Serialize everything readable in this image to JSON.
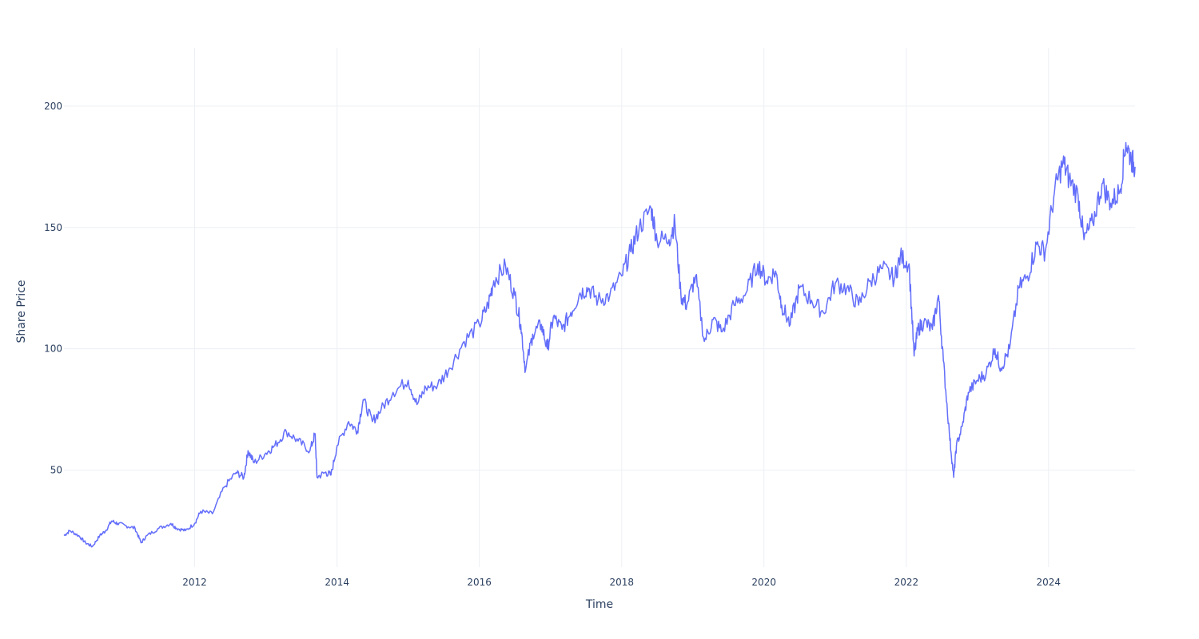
{
  "chart_data": {
    "type": "line",
    "title": "",
    "xlabel": "Time",
    "ylabel": "Share Price",
    "xlim": [
      "2010-03-01",
      "2025-03-20"
    ],
    "ylim": [
      10,
      224
    ],
    "grid": true,
    "legend": "none",
    "x_ticks": [
      "2012",
      "2014",
      "2016",
      "2018",
      "2020",
      "2022",
      "2024"
    ],
    "y_ticks": [
      50,
      100,
      150,
      200
    ],
    "series": [
      {
        "color": "#636efa",
        "points": [
          [
            "2010-03-01",
            23
          ],
          [
            "2010-04-01",
            25
          ],
          [
            "2010-05-15",
            23
          ],
          [
            "2010-06-20",
            20
          ],
          [
            "2010-07-25",
            18.5
          ],
          [
            "2010-09-01",
            23
          ],
          [
            "2010-10-01",
            25
          ],
          [
            "2010-11-01",
            29
          ],
          [
            "2010-12-01",
            28
          ],
          [
            "2011-01-15",
            27
          ],
          [
            "2011-03-01",
            26
          ],
          [
            "2011-04-01",
            20
          ],
          [
            "2011-05-01",
            23
          ],
          [
            "2011-07-01",
            26
          ],
          [
            "2011-09-01",
            28
          ],
          [
            "2011-10-01",
            26
          ],
          [
            "2011-11-15",
            25
          ],
          [
            "2012-01-01",
            28
          ],
          [
            "2012-02-01",
            33
          ],
          [
            "2012-04-01",
            32
          ],
          [
            "2012-06-01",
            43
          ],
          [
            "2012-08-01",
            49
          ],
          [
            "2012-09-10",
            47
          ],
          [
            "2012-10-01",
            58
          ],
          [
            "2012-11-01",
            53
          ],
          [
            "2013-01-01",
            57
          ],
          [
            "2013-02-15",
            60
          ],
          [
            "2013-04-15",
            66
          ],
          [
            "2013-06-15",
            62
          ],
          [
            "2013-08-15",
            58
          ],
          [
            "2013-09-10",
            65
          ],
          [
            "2013-09-20",
            47
          ],
          [
            "2013-11-01",
            49
          ],
          [
            "2013-12-01",
            48
          ],
          [
            "2014-01-01",
            60
          ],
          [
            "2014-03-01",
            70
          ],
          [
            "2014-04-15",
            66
          ],
          [
            "2014-05-15",
            79
          ],
          [
            "2014-07-01",
            70
          ],
          [
            "2014-08-15",
            75
          ],
          [
            "2014-10-15",
            82
          ],
          [
            "2015-01-01",
            87
          ],
          [
            "2015-02-15",
            77
          ],
          [
            "2015-04-01",
            84
          ],
          [
            "2015-06-01",
            85
          ],
          [
            "2015-08-01",
            92
          ],
          [
            "2015-10-15",
            103
          ],
          [
            "2016-01-01",
            110
          ],
          [
            "2016-02-15",
            118
          ],
          [
            "2016-03-15",
            128
          ],
          [
            "2016-05-15",
            134
          ],
          [
            "2016-07-01",
            122
          ],
          [
            "2016-08-01",
            110
          ],
          [
            "2016-08-25",
            91
          ],
          [
            "2016-10-01",
            106
          ],
          [
            "2016-11-15",
            110
          ],
          [
            "2016-12-15",
            100
          ],
          [
            "2017-01-15",
            113
          ],
          [
            "2017-03-01",
            108
          ],
          [
            "2017-04-15",
            115
          ],
          [
            "2017-06-01",
            123
          ],
          [
            "2017-07-15",
            125
          ],
          [
            "2017-09-01",
            120
          ],
          [
            "2017-11-01",
            122
          ],
          [
            "2018-01-01",
            130
          ],
          [
            "2018-02-15",
            140
          ],
          [
            "2018-04-01",
            150
          ],
          [
            "2018-06-01",
            158
          ],
          [
            "2018-07-01",
            145
          ],
          [
            "2018-09-01",
            145
          ],
          [
            "2018-10-01",
            152
          ],
          [
            "2018-11-01",
            122
          ],
          [
            "2018-12-01",
            118
          ],
          [
            "2019-01-15",
            130
          ],
          [
            "2019-03-01",
            103
          ],
          [
            "2019-04-15",
            112
          ],
          [
            "2019-06-01",
            107
          ],
          [
            "2019-08-01",
            118
          ],
          [
            "2019-10-01",
            123
          ],
          [
            "2019-12-01",
            135
          ],
          [
            "2020-01-15",
            128
          ],
          [
            "2020-03-01",
            132
          ],
          [
            "2020-04-01",
            118
          ],
          [
            "2020-05-15",
            110
          ],
          [
            "2020-07-01",
            125
          ],
          [
            "2020-09-01",
            120
          ],
          [
            "2020-11-01",
            115
          ],
          [
            "2021-01-01",
            127
          ],
          [
            "2021-03-01",
            125
          ],
          [
            "2021-05-01",
            118
          ],
          [
            "2021-07-01",
            128
          ],
          [
            "2021-09-01",
            133
          ],
          [
            "2021-11-01",
            129
          ],
          [
            "2021-12-01",
            138
          ],
          [
            "2022-01-15",
            135
          ],
          [
            "2022-02-10",
            97
          ],
          [
            "2022-03-01",
            108
          ],
          [
            "2022-04-01",
            111
          ],
          [
            "2022-05-15",
            108
          ],
          [
            "2022-06-15",
            122
          ],
          [
            "2022-07-10",
            95
          ],
          [
            "2022-08-10",
            65
          ],
          [
            "2022-09-01",
            47
          ],
          [
            "2022-09-15",
            60
          ],
          [
            "2022-10-15",
            68
          ],
          [
            "2022-11-15",
            82
          ],
          [
            "2023-01-01",
            87
          ],
          [
            "2023-02-15",
            90
          ],
          [
            "2023-04-01",
            100
          ],
          [
            "2023-05-01",
            92
          ],
          [
            "2023-06-15",
            100
          ],
          [
            "2023-08-01",
            125
          ],
          [
            "2023-09-15",
            130
          ],
          [
            "2023-11-01",
            143
          ],
          [
            "2023-12-15",
            140
          ],
          [
            "2024-02-01",
            165
          ],
          [
            "2024-03-15",
            177
          ],
          [
            "2024-04-15",
            170
          ],
          [
            "2024-06-01",
            163
          ],
          [
            "2024-07-01",
            145
          ],
          [
            "2024-08-15",
            152
          ],
          [
            "2024-10-01",
            168
          ],
          [
            "2024-11-15",
            160
          ],
          [
            "2025-01-01",
            165
          ],
          [
            "2025-02-01",
            185
          ],
          [
            "2025-03-01",
            178
          ],
          [
            "2025-03-20",
            175
          ]
        ]
      }
    ]
  }
}
